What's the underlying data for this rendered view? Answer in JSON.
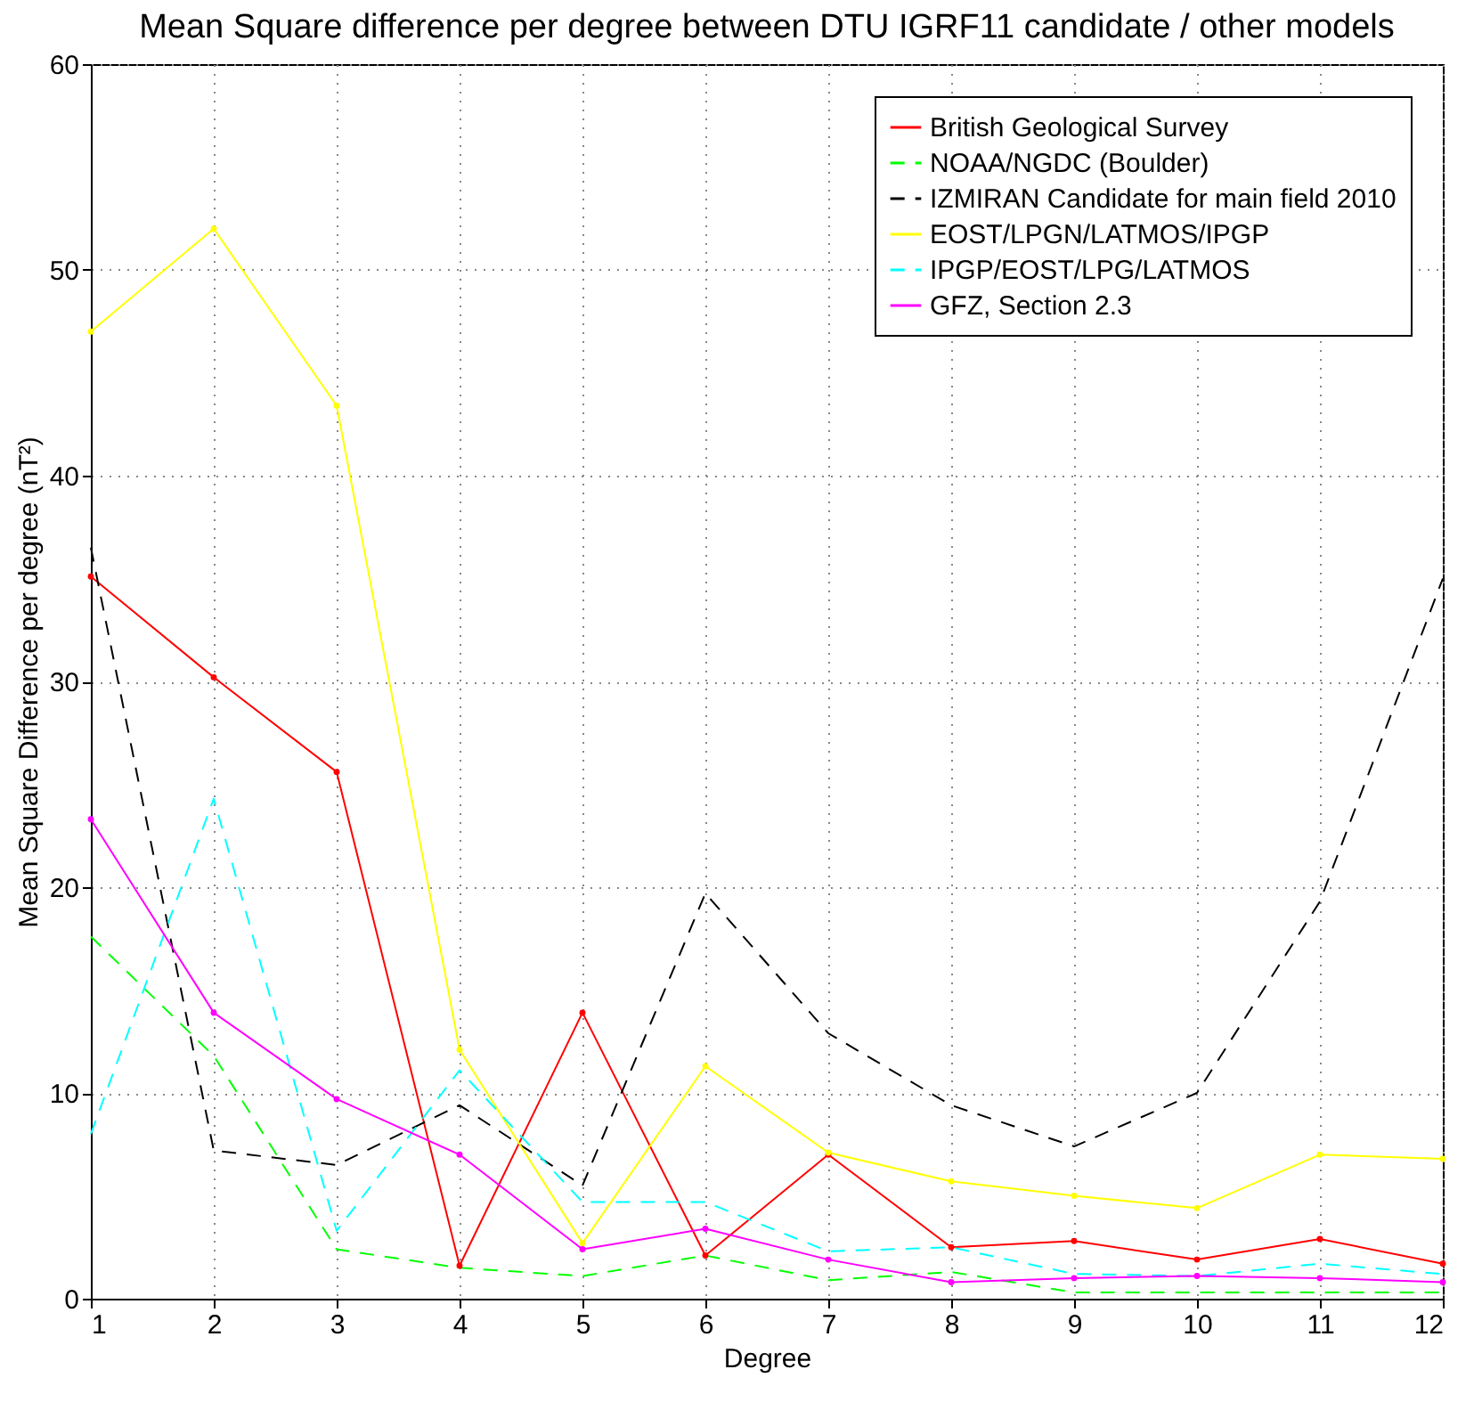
{
  "chart_data": {
    "type": "line",
    "title": "Mean Square difference per degree between DTU IGRF11 candidate / other models",
    "xlabel": "Degree",
    "ylabel": "Mean Square Difference per degree (nT²)",
    "x": [
      1,
      2,
      3,
      4,
      5,
      6,
      7,
      8,
      9,
      10,
      11,
      12
    ],
    "xlim": [
      1,
      12
    ],
    "xticks": [
      1,
      2,
      3,
      4,
      5,
      6,
      7,
      8,
      9,
      10,
      11,
      12
    ],
    "ylim": [
      0,
      60
    ],
    "yticks": [
      0,
      10,
      20,
      30,
      40,
      50,
      60
    ],
    "grid": true,
    "legend": "top right",
    "series": [
      {
        "name": "British Geological Survey",
        "color": "#ff0000",
        "line_style": "solid",
        "marker": "circle",
        "values": [
          35.1,
          30.2,
          25.6,
          1.6,
          13.9,
          2.1,
          7.0,
          2.5,
          2.8,
          1.9,
          2.9,
          1.7
        ]
      },
      {
        "name": "NOAA/NGDC (Boulder)",
        "color": "#00ff00",
        "line_style": "dashed",
        "marker": "none",
        "values": [
          17.6,
          11.8,
          2.4,
          1.5,
          1.1,
          2.1,
          0.9,
          1.3,
          0.3,
          0.3,
          0.3,
          0.3
        ]
      },
      {
        "name": "IZMIRAN Candidate for main field 2010",
        "color": "#000000",
        "line_style": "dashed",
        "marker": "none",
        "values": [
          36.5,
          7.2,
          6.5,
          9.4,
          5.5,
          19.7,
          12.9,
          9.4,
          7.4,
          10.0,
          19.3,
          35.0
        ]
      },
      {
        "name": "EOST/LPGN/LATMOS/IPGP",
        "color": "#ffff00",
        "line_style": "solid",
        "marker": "circle",
        "values": [
          47,
          52,
          43.4,
          12.1,
          2.7,
          11.3,
          7.1,
          5.7,
          5.0,
          4.4,
          7.0,
          6.8
        ]
      },
      {
        "name": "IPGP/EOST/LPG/LATMOS",
        "color": "#00ffff",
        "line_style": "dashed",
        "marker": "none",
        "values": [
          8.0,
          24.3,
          3.3,
          11.1,
          4.7,
          4.7,
          2.3,
          2.5,
          1.2,
          1.1,
          1.7,
          1.2
        ]
      },
      {
        "name": "GFZ, Section 2.3",
        "color": "#ff00ff",
        "line_style": "solid",
        "marker": "circle",
        "values": [
          23.3,
          13.9,
          9.7,
          7.0,
          2.4,
          3.4,
          1.9,
          0.8,
          1.0,
          1.1,
          1.0,
          0.8
        ]
      }
    ]
  }
}
